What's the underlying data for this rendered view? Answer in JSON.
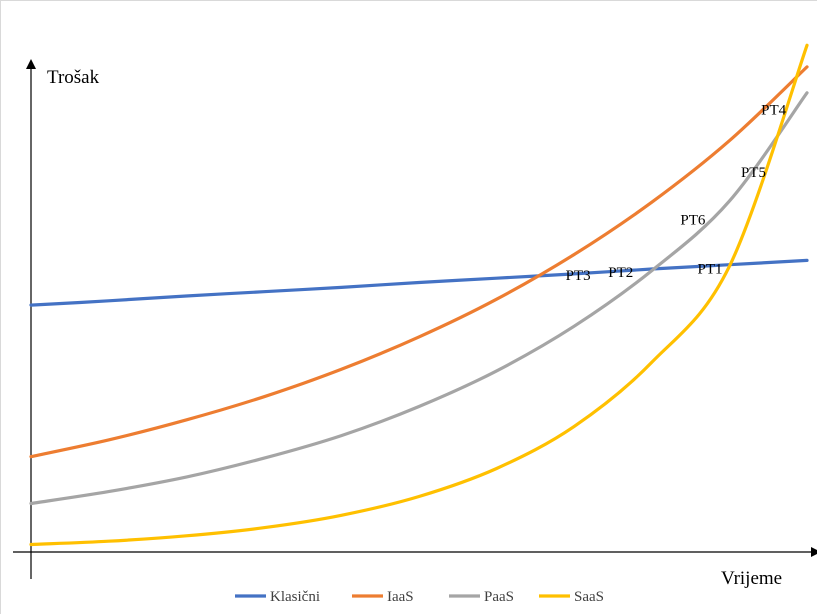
{
  "chart_data": {
    "type": "line",
    "title": "",
    "xlabel": "Vrijeme",
    "ylabel": "Trošak",
    "xlim": [
      0,
      1
    ],
    "ylim": [
      0,
      1
    ],
    "grid": false,
    "legend_position": "bottom",
    "series": [
      {
        "name": "Klasični",
        "color": "#4472C4",
        "x": [
          0,
          0.1,
          0.2,
          0.3,
          0.4,
          0.5,
          0.6,
          0.7,
          0.8,
          0.9,
          1.0
        ],
        "y": [
          0.458,
          0.466,
          0.475,
          0.483,
          0.491,
          0.5,
          0.508,
          0.516,
          0.525,
          0.533,
          0.541
        ]
      },
      {
        "name": "IaaS",
        "color": "#ED7D31",
        "x": [
          0,
          0.1,
          0.2,
          0.3,
          0.4,
          0.5,
          0.6,
          0.7,
          0.8,
          0.9,
          1.0
        ],
        "y": [
          0.177,
          0.208,
          0.245,
          0.288,
          0.339,
          0.399,
          0.469,
          0.552,
          0.649,
          0.763,
          0.9
        ]
      },
      {
        "name": "PaaS",
        "color": "#A5A5A5",
        "x": [
          0,
          0.1,
          0.2,
          0.3,
          0.4,
          0.5,
          0.6,
          0.7,
          0.8,
          0.9,
          1.0
        ],
        "y": [
          0.09,
          0.112,
          0.139,
          0.174,
          0.216,
          0.27,
          0.336,
          0.419,
          0.522,
          0.651,
          0.852
        ]
      },
      {
        "name": "SaaS",
        "color": "#FFC000",
        "x": [
          0,
          0.1,
          0.2,
          0.3,
          0.4,
          0.5,
          0.6,
          0.7,
          0.8,
          0.9,
          1.0
        ],
        "y": [
          0.014,
          0.02,
          0.03,
          0.045,
          0.068,
          0.103,
          0.155,
          0.233,
          0.352,
          0.53,
          0.94
        ]
      }
    ],
    "annotations": [
      {
        "label": "PT1",
        "x": 0.875,
        "y": 0.517
      },
      {
        "label": "PT2",
        "x": 0.76,
        "y": 0.51
      },
      {
        "label": "PT3",
        "x": 0.705,
        "y": 0.505
      },
      {
        "label": "PT4",
        "x": 0.957,
        "y": 0.812
      },
      {
        "label": "PT5",
        "x": 0.931,
        "y": 0.696
      },
      {
        "label": "PT6",
        "x": 0.853,
        "y": 0.608
      }
    ]
  }
}
